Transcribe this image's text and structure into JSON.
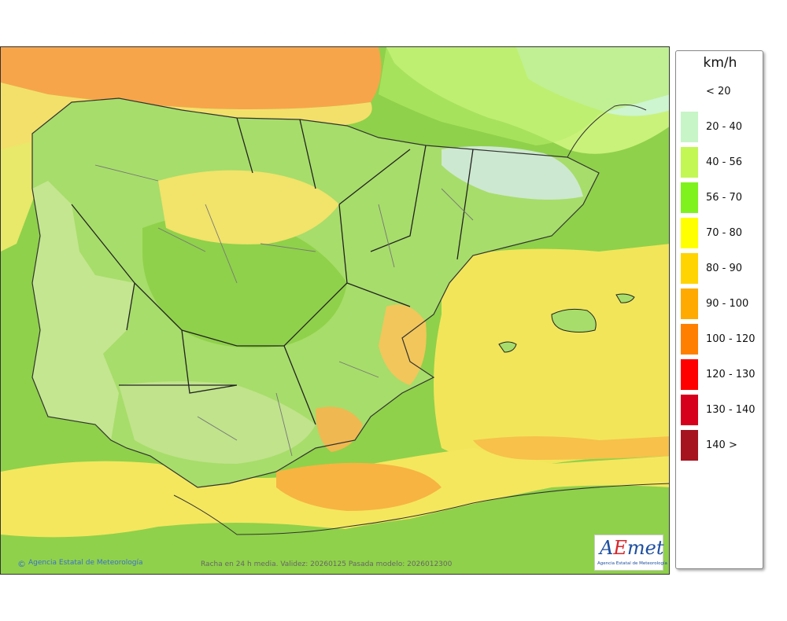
{
  "legend": {
    "title": "km/h",
    "items": [
      {
        "label": "< 20",
        "color": "#ffffff"
      },
      {
        "label": "20 - 40",
        "color": "#c7f5c7"
      },
      {
        "label": "40 - 56",
        "color": "#c2f754"
      },
      {
        "label": "56 - 70",
        "color": "#7ff21e"
      },
      {
        "label": "70 - 80",
        "color": "#ffff00"
      },
      {
        "label": "80 - 90",
        "color": "#ffd400"
      },
      {
        "label": "90 - 100",
        "color": "#ffaa00"
      },
      {
        "label": "100 - 120",
        "color": "#ff8000"
      },
      {
        "label": "120 - 130",
        "color": "#ff0000"
      },
      {
        "label": "130 - 140",
        "color": "#d6001c"
      },
      {
        "label": "140 >",
        "color": "#a5141f"
      }
    ]
  },
  "footer": {
    "credit": "Agencia Estatal de Meteorología",
    "validity": "Racha en 24 h media. Validez: 20260125 Pasada modelo: 2026012300"
  },
  "logo": {
    "wordmark_a": "A",
    "wordmark_e": "E",
    "wordmark_rest": "met",
    "subtitle": "Agencia Estatal de Meteorología"
  }
}
